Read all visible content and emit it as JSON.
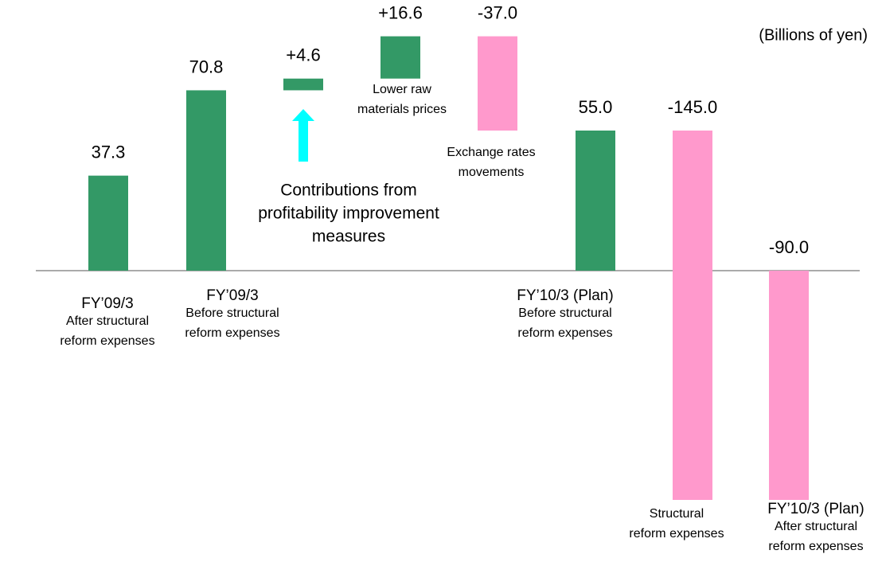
{
  "chart_data": {
    "type": "waterfall",
    "unit_label": "(Billions of yen)",
    "categories": [
      [
        "FY’09/3",
        "After structural",
        "reform expenses"
      ],
      [
        "FY’09/3",
        "Before structural",
        "reform expenses"
      ],
      null,
      [
        "Lower raw",
        "materials prices"
      ],
      [
        "Exchange rates",
        "movements"
      ],
      [
        "FY’10/3 (Plan)",
        "Before structural",
        "reform expenses"
      ],
      [
        "Structural",
        "reform expenses"
      ],
      [
        "FY’10/3 (Plan)",
        "After structural",
        "reform expenses"
      ]
    ],
    "kinds": [
      "total",
      "total",
      "delta",
      "delta",
      "delta",
      "total",
      "delta",
      "total"
    ],
    "values": [
      37.3,
      70.8,
      4.6,
      16.6,
      -37.0,
      55.0,
      -145.0,
      -90.0
    ],
    "value_labels": [
      "37.3",
      "70.8",
      "+4.6",
      "+16.6",
      "-37.0",
      "55.0",
      "-145.0",
      "-90.0"
    ],
    "positive_color": "#339966",
    "negative_color": "#ff99cc",
    "annotation": {
      "lines": [
        "Contributions from",
        "profitability improvement",
        "measures"
      ],
      "color": "#00ffff"
    }
  }
}
